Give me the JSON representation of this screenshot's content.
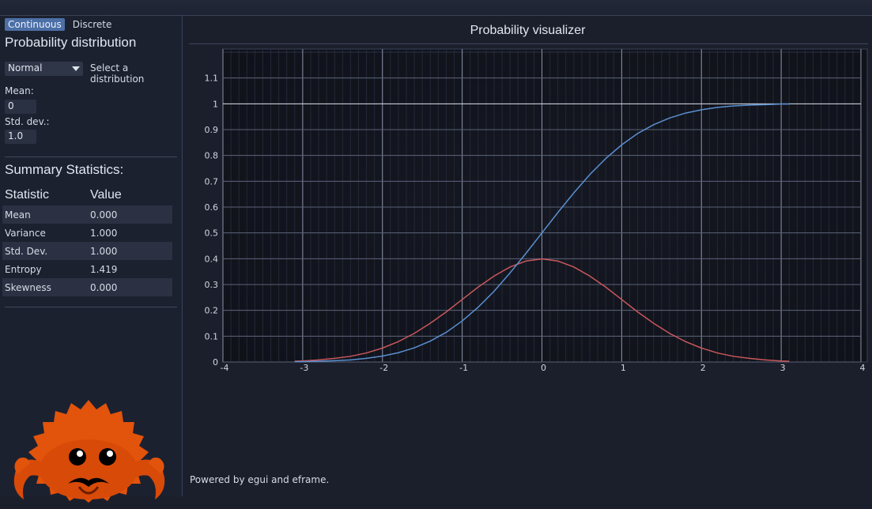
{
  "tabs": [
    {
      "label": "Continuous",
      "active": true
    },
    {
      "label": "Discrete",
      "active": false
    }
  ],
  "sidebar": {
    "heading": "Probability distribution",
    "distribution_select": "Normal",
    "select_label": "Select a distribution",
    "mean_label": "Mean:",
    "mean_value": "0",
    "std_label": "Std. dev.:",
    "std_value": "1.0",
    "summary_heading": "Summary Statistics:",
    "table_headers": [
      "Statistic",
      "Value"
    ],
    "stats": [
      {
        "name": "Mean",
        "value": "0.000"
      },
      {
        "name": "Variance",
        "value": "1.000"
      },
      {
        "name": "Std. Dev.",
        "value": "1.000"
      },
      {
        "name": "Entropy",
        "value": "1.419"
      },
      {
        "name": "Skewness",
        "value": "0.000"
      }
    ]
  },
  "main": {
    "title": "Probability visualizer",
    "footer": "Powered by egui and eframe."
  },
  "colors": {
    "pdf": "#c9575c",
    "cdf": "#5a8fd1",
    "accent": "#4c6fa6"
  },
  "chart_data": {
    "type": "line",
    "title": "Probability visualizer",
    "xlim": [
      -4,
      4
    ],
    "ylim": [
      0,
      1.2
    ],
    "x_ticks": [
      "-4",
      "-3",
      "-2",
      "-1",
      "0",
      "1",
      "2",
      "3",
      "4"
    ],
    "y_ticks": [
      "0",
      "0.1",
      "0.2",
      "0.3",
      "0.4",
      "0.5",
      "0.6",
      "0.7",
      "0.8",
      "0.9",
      "1",
      "1.1"
    ],
    "grid": true,
    "series": [
      {
        "x": [
          -3.1,
          -3.0,
          -2.8,
          -2.6,
          -2.4,
          -2.2,
          -2.0,
          -1.8,
          -1.6,
          -1.4,
          -1.2,
          -1.0,
          -0.8,
          -0.6,
          -0.4,
          -0.2,
          0.0,
          0.2,
          0.4,
          0.6,
          0.8,
          1.0,
          1.2,
          1.4,
          1.6,
          1.8,
          2.0,
          2.2,
          2.4,
          2.6,
          2.8,
          3.0,
          3.1
        ],
        "values": [
          0.003,
          0.004,
          0.008,
          0.014,
          0.022,
          0.035,
          0.054,
          0.079,
          0.111,
          0.15,
          0.194,
          0.242,
          0.29,
          0.333,
          0.368,
          0.391,
          0.399,
          0.391,
          0.368,
          0.333,
          0.29,
          0.242,
          0.194,
          0.15,
          0.111,
          0.079,
          0.054,
          0.035,
          0.022,
          0.014,
          0.008,
          0.004,
          0.003
        ]
      },
      {
        "x": [
          -3.1,
          -3.0,
          -2.8,
          -2.6,
          -2.4,
          -2.2,
          -2.0,
          -1.8,
          -1.6,
          -1.4,
          -1.2,
          -1.0,
          -0.8,
          -0.6,
          -0.4,
          -0.2,
          0.0,
          0.2,
          0.4,
          0.6,
          0.8,
          1.0,
          1.2,
          1.4,
          1.6,
          1.8,
          2.0,
          2.2,
          2.4,
          2.6,
          2.8,
          3.0,
          3.1
        ],
        "values": [
          0.001,
          0.001,
          0.003,
          0.005,
          0.008,
          0.014,
          0.023,
          0.036,
          0.055,
          0.081,
          0.115,
          0.159,
          0.212,
          0.274,
          0.345,
          0.421,
          0.5,
          0.579,
          0.655,
          0.726,
          0.788,
          0.841,
          0.885,
          0.919,
          0.945,
          0.964,
          0.977,
          0.986,
          0.992,
          0.995,
          0.997,
          0.999,
          0.999
        ]
      }
    ]
  }
}
